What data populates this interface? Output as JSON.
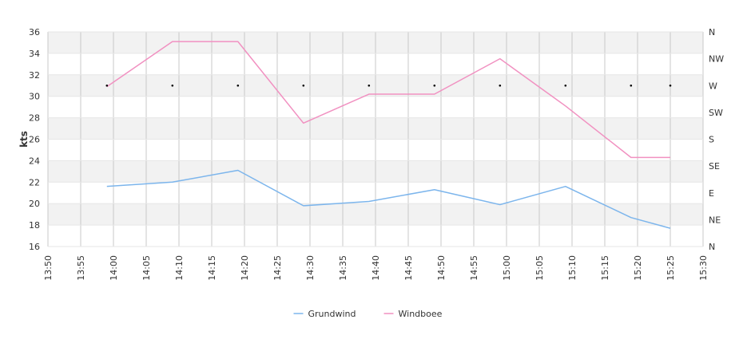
{
  "chart_data": {
    "type": "line",
    "x": [
      "13:59",
      "14:09",
      "14:19",
      "14:29",
      "14:39",
      "14:49",
      "14:59",
      "15:09",
      "15:19",
      "15:25"
    ],
    "series": [
      {
        "name": "Grundwind",
        "color": "#7cb5ec",
        "values": [
          21.6,
          22.0,
          23.1,
          19.8,
          20.2,
          21.3,
          19.9,
          21.6,
          18.7,
          17.7
        ]
      },
      {
        "name": "Windboee",
        "color": "#f191c1",
        "values": [
          30.9,
          35.1,
          35.1,
          27.5,
          30.2,
          30.2,
          33.5,
          29.1,
          24.3,
          24.3
        ]
      }
    ],
    "direction_markers": {
      "x": [
        "13:59",
        "14:09",
        "14:19",
        "14:29",
        "14:39",
        "14:49",
        "14:59",
        "15:09",
        "15:19",
        "15:25"
      ],
      "values": [
        "W",
        "W",
        "W",
        "W",
        "W",
        "W",
        "W",
        "W",
        "W",
        "W"
      ]
    },
    "ylabel": "kts",
    "ylim": [
      16,
      36
    ],
    "y_ticks": [
      "16",
      "18",
      "20",
      "22",
      "24",
      "26",
      "28",
      "30",
      "32",
      "34",
      "36"
    ],
    "x_ticks": [
      "13:50",
      "13:55",
      "14:00",
      "14:05",
      "14:10",
      "14:15",
      "14:20",
      "14:25",
      "14:30",
      "14:35",
      "14:40",
      "14:45",
      "14:50",
      "14:55",
      "15:00",
      "15:05",
      "15:10",
      "15:15",
      "15:20",
      "15:25",
      "15:30"
    ],
    "xlim": [
      "13:50",
      "15:30"
    ],
    "right_axis_ticks": [
      "N",
      "NE",
      "E",
      "SE",
      "S",
      "SW",
      "W",
      "NW",
      "N"
    ],
    "grid": true,
    "alternate_bands": true,
    "legend_position": "bottom-center"
  }
}
